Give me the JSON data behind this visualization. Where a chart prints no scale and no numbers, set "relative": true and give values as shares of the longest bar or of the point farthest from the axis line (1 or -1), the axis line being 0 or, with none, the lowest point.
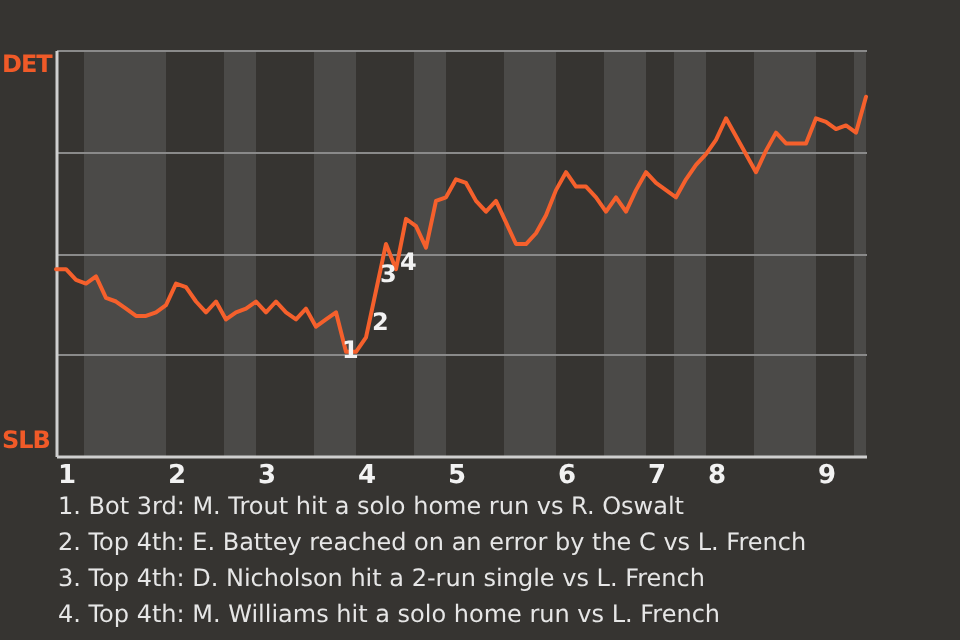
{
  "chart_data": {
    "type": "line",
    "relative": true,
    "categories": [
      null,
      "1",
      null,
      null,
      null,
      null,
      null,
      null,
      null,
      null,
      null,
      null,
      "2",
      null,
      null,
      null,
      null,
      null,
      null,
      null,
      null,
      "3",
      null,
      null,
      null,
      null,
      null,
      null,
      null,
      null,
      null,
      "4",
      null,
      null,
      null,
      null,
      null,
      null,
      null,
      null,
      "5",
      null,
      null,
      null,
      null,
      null,
      null,
      null,
      null,
      null,
      null,
      "6",
      null,
      null,
      null,
      null,
      null,
      null,
      null,
      null,
      "7",
      null,
      null,
      null,
      null,
      null,
      "8",
      null,
      null,
      null,
      null,
      null,
      null,
      null,
      null,
      null,
      null,
      "9",
      null,
      null,
      null,
      null
    ],
    "series": [
      {
        "color": "#f5602c",
        "values": [
          0.52,
          0.52,
          0.49,
          0.48,
          0.5,
          0.44,
          0.43,
          0.41,
          0.39,
          0.39,
          0.4,
          0.42,
          0.48,
          0.47,
          0.43,
          0.4,
          0.43,
          0.38,
          0.4,
          0.41,
          0.43,
          0.4,
          0.43,
          0.4,
          0.38,
          0.41,
          0.36,
          0.38,
          0.4,
          0.29,
          0.29,
          0.33,
          0.46,
          0.59,
          0.52,
          0.66,
          0.64,
          0.58,
          0.71,
          0.72,
          0.77,
          0.76,
          0.71,
          0.68,
          0.71,
          0.65,
          0.59,
          0.59,
          0.62,
          0.67,
          0.74,
          0.79,
          0.75,
          0.75,
          0.72,
          0.68,
          0.72,
          0.68,
          0.74,
          0.79,
          0.76,
          0.74,
          0.72,
          0.77,
          0.81,
          0.84,
          0.88,
          0.94,
          0.89,
          0.84,
          0.79,
          0.85,
          0.9,
          0.87,
          0.87,
          0.87,
          0.94,
          0.93,
          0.91,
          0.92,
          0.9,
          1
        ]
      }
    ],
    "grid": "y",
    "annotations": [
      "DET",
      "SLB",
      "1",
      "2",
      "3",
      "4",
      "1. Bot 3rd: M. Trout hit a solo home run vs R. Oswalt",
      "2. Top 4th: E. Battey reached on an error by the C vs L. French",
      "3. Top 4th: D. Nicholson hit a 2-run single vs L. French",
      "4. Top 4th: M. Williams hit a solo home run vs L. French"
    ]
  }
}
